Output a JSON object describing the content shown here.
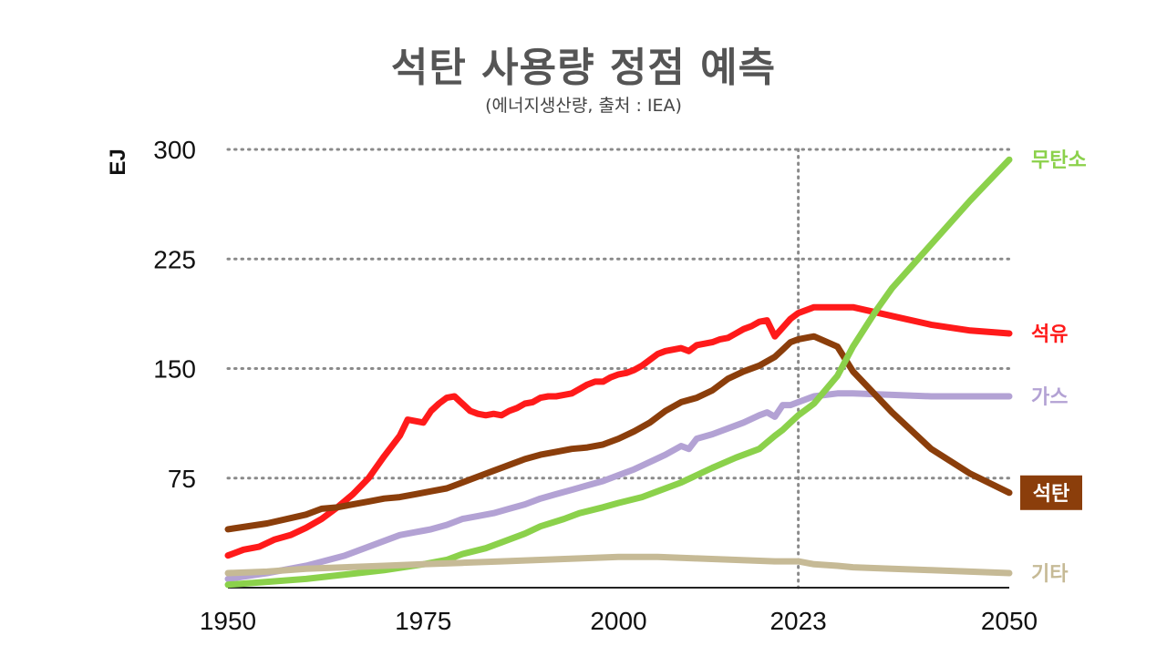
{
  "chart_data": {
    "type": "line",
    "title": "석탄 사용량 정점 예측",
    "subtitle": "(에너지생산량, 출처 : IEA)",
    "ylabel": "EJ",
    "xlabel": "",
    "xlim": [
      1950,
      2050
    ],
    "ylim": [
      0,
      300
    ],
    "y_ticks": [
      75,
      150,
      225,
      300
    ],
    "x_ticks": [
      1950,
      1975,
      2000,
      2023,
      2050
    ],
    "x_tick_labels": [
      "1950",
      "1975",
      "2000",
      "2023",
      "2050"
    ],
    "y_tick_labels": [
      "75",
      "150",
      "225",
      "300"
    ],
    "reference_line_x": 2023,
    "grid": "horizontal dotted",
    "series": [
      {
        "name": "석유",
        "color": "#ff1a1a",
        "label_style": "text",
        "x": [
          1950,
          1952,
          1954,
          1956,
          1958,
          1960,
          1962,
          1964,
          1966,
          1968,
          1970,
          1972,
          1973,
          1974,
          1975,
          1976,
          1977,
          1978,
          1979,
          1980,
          1981,
          1982,
          1983,
          1984,
          1985,
          1986,
          1987,
          1988,
          1989,
          1990,
          1991,
          1992,
          1993,
          1994,
          1995,
          1996,
          1997,
          1998,
          1999,
          2000,
          2001,
          2002,
          2003,
          2004,
          2005,
          2006,
          2007,
          2008,
          2009,
          2010,
          2011,
          2012,
          2013,
          2014,
          2015,
          2016,
          2017,
          2018,
          2019,
          2020,
          2021,
          2022,
          2023,
          2025,
          2030,
          2035,
          2040,
          2045,
          2050
        ],
        "values": [
          22,
          26,
          28,
          33,
          36,
          41,
          47,
          55,
          64,
          75,
          90,
          104,
          115,
          114,
          113,
          121,
          126,
          130,
          131,
          126,
          121,
          119,
          118,
          119,
          118,
          121,
          123,
          126,
          127,
          130,
          131,
          131,
          132,
          133,
          136,
          139,
          141,
          141,
          144,
          146,
          147,
          149,
          152,
          156,
          160,
          162,
          163,
          164,
          162,
          166,
          167,
          168,
          170,
          171,
          174,
          177,
          179,
          182,
          183,
          172,
          178,
          184,
          188,
          192,
          192,
          186,
          180,
          176,
          174
        ]
      },
      {
        "name": "가스",
        "color": "#b3a2d4",
        "label_style": "text",
        "x": [
          1950,
          1955,
          1960,
          1965,
          1970,
          1972,
          1974,
          1975,
          1976,
          1978,
          1980,
          1982,
          1984,
          1986,
          1988,
          1990,
          1992,
          1994,
          1996,
          1998,
          2000,
          2002,
          2004,
          2006,
          2008,
          2009,
          2010,
          2012,
          2014,
          2016,
          2018,
          2019,
          2020,
          2021,
          2022,
          2023,
          2025,
          2028,
          2030,
          2035,
          2040,
          2045,
          2050
        ],
        "values": [
          6,
          10,
          15,
          22,
          32,
          36,
          38,
          39,
          40,
          43,
          47,
          49,
          51,
          54,
          57,
          61,
          64,
          67,
          70,
          73,
          77,
          81,
          86,
          91,
          97,
          95,
          102,
          105,
          109,
          113,
          118,
          120,
          117,
          125,
          125,
          127,
          131,
          133,
          133,
          132,
          131,
          131,
          131
        ]
      },
      {
        "name": "석탄",
        "color": "#8b3e0b",
        "label_style": "box",
        "x": [
          1950,
          1955,
          1960,
          1962,
          1964,
          1966,
          1968,
          1970,
          1972,
          1974,
          1976,
          1978,
          1980,
          1982,
          1984,
          1986,
          1988,
          1990,
          1992,
          1994,
          1996,
          1998,
          2000,
          2002,
          2004,
          2006,
          2008,
          2010,
          2012,
          2014,
          2016,
          2018,
          2020,
          2021,
          2022,
          2023,
          2025,
          2028,
          2030,
          2035,
          2040,
          2045,
          2050
        ],
        "values": [
          40,
          44,
          50,
          54,
          55,
          57,
          59,
          61,
          62,
          64,
          66,
          68,
          72,
          76,
          80,
          84,
          88,
          91,
          93,
          95,
          96,
          98,
          102,
          107,
          113,
          121,
          127,
          130,
          135,
          143,
          148,
          152,
          158,
          163,
          168,
          170,
          172,
          165,
          148,
          120,
          95,
          78,
          65
        ]
      },
      {
        "name": "무탄소",
        "color": "#8bd14b",
        "label_style": "text",
        "x": [
          1950,
          1955,
          1960,
          1965,
          1970,
          1975,
          1978,
          1980,
          1983,
          1985,
          1988,
          1990,
          1993,
          1995,
          1998,
          2000,
          2003,
          2005,
          2008,
          2010,
          2012,
          2015,
          2018,
          2020,
          2021,
          2022,
          2023,
          2025,
          2028,
          2030,
          2033,
          2035,
          2040,
          2045,
          2050
        ],
        "values": [
          2,
          4,
          6,
          9,
          12,
          16,
          19,
          23,
          27,
          31,
          37,
          42,
          47,
          51,
          55,
          58,
          62,
          66,
          72,
          77,
          82,
          89,
          95,
          104,
          108,
          113,
          118,
          126,
          145,
          165,
          190,
          205,
          235,
          265,
          293
        ]
      },
      {
        "name": "기타",
        "color": "#c6ba96",
        "label_style": "text",
        "x": [
          1950,
          1955,
          1960,
          1965,
          1970,
          1975,
          1980,
          1985,
          1990,
          1995,
          2000,
          2005,
          2010,
          2015,
          2020,
          2023,
          2025,
          2028,
          2030,
          2035,
          2040,
          2045,
          2050
        ],
        "values": [
          10,
          11,
          13,
          14,
          15,
          16,
          17,
          18,
          19,
          20,
          21,
          21,
          20,
          19,
          18,
          18,
          16,
          15,
          14,
          13,
          12,
          11,
          10
        ]
      }
    ]
  }
}
